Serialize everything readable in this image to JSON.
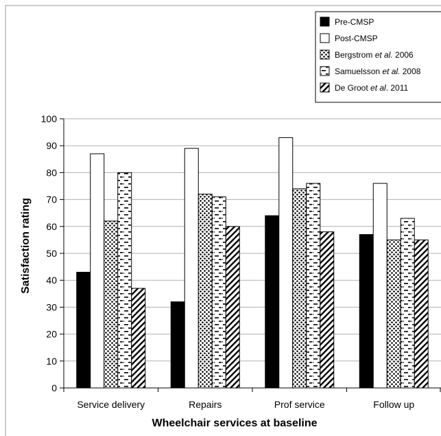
{
  "chart_data": {
    "type": "bar",
    "categories": [
      "Service delivery",
      "Repairs",
      "Prof service",
      "Follow up"
    ],
    "series": [
      {
        "name": "Pre-CMSP",
        "pattern": "solid",
        "values": [
          43,
          32,
          64,
          57
        ]
      },
      {
        "name": "Post-CMSP",
        "pattern": "white",
        "values": [
          87,
          89,
          93,
          76
        ]
      },
      {
        "name": "Bergstrom et al. 2006",
        "legend_plain": "Bergstrom ",
        "legend_italic": "et al.",
        "legend_tail": " 2006",
        "pattern": "dots",
        "values": [
          62,
          72,
          74,
          55
        ]
      },
      {
        "name": "Samuelsson et al. 2008",
        "legend_plain": "Samuelsson ",
        "legend_italic": "et al.",
        "legend_tail": " 2008",
        "pattern": "dashes",
        "values": [
          80,
          71,
          76,
          63
        ]
      },
      {
        "name": "De Groot et al. 2011",
        "legend_plain": "De Groot ",
        "legend_italic": "et al",
        "legend_tail": ". 2011",
        "pattern": "diagonal",
        "values": [
          37,
          60,
          58,
          55
        ]
      }
    ],
    "xlabel": "Wheelchair services at baseline",
    "ylabel": "Satisfaction rating",
    "ylim": [
      0,
      100
    ],
    "yticks": [
      0,
      10,
      20,
      30,
      40,
      50,
      60,
      70,
      80,
      90,
      100
    ],
    "grid": true,
    "legend_position": "top-right",
    "colors": {
      "bar_fill": "#000000",
      "bar_stroke": "#000000",
      "grid": "#b0b0b0",
      "background": "#ffffff"
    }
  }
}
